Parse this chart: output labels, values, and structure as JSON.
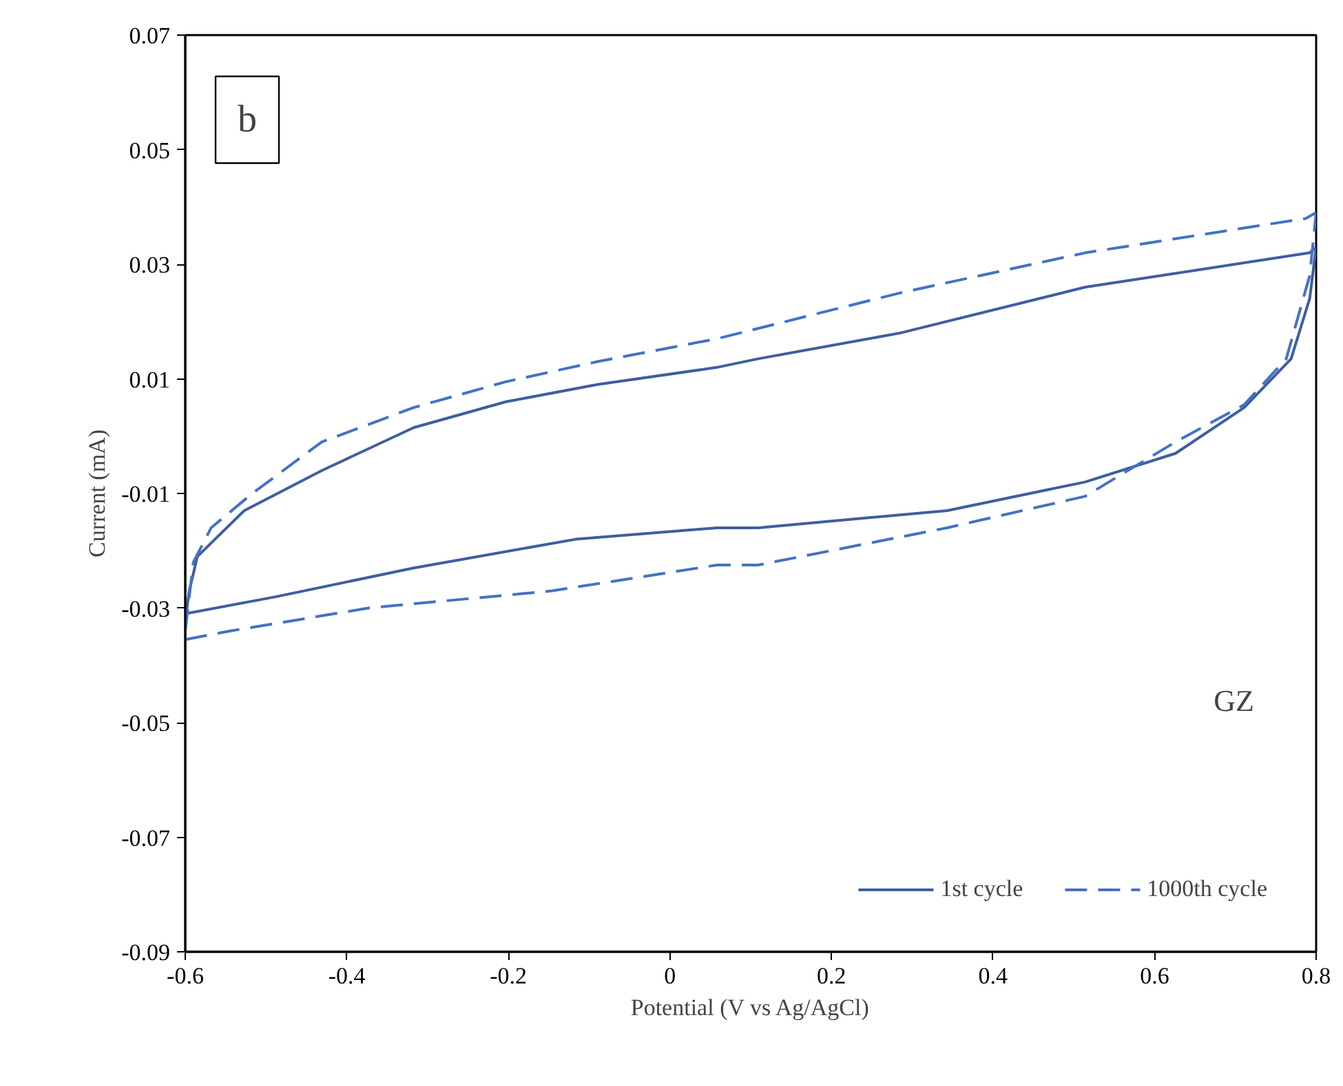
{
  "chart_data": {
    "type": "line",
    "xlabel": "Potential (V vs Ag/AgCl)",
    "ylabel": "Current (mA)",
    "xlim": [
      -0.6,
      0.8
    ],
    "xticks": [
      -0.6,
      -0.4,
      -0.2,
      0,
      0.2,
      0.4,
      0.6,
      0.8
    ],
    "ylim": [
      -0.09,
      0.07
    ],
    "yticks": [
      -0.09,
      -0.07,
      -0.05,
      -0.03,
      -0.01,
      0.01,
      0.03,
      0.05,
      0.07
    ],
    "grid": false,
    "legend": "bottom right",
    "marker": "none",
    "annotations": [
      "b",
      "GZ"
    ],
    "series": [
      {
        "name": "1st cycle",
        "color": "#3f5e9e",
        "line_style": "solid",
        "x": [
          -0.6,
          -0.595,
          -0.585,
          -0.527,
          -0.431,
          -0.317,
          -0.203,
          -0.09,
          0.058,
          0.109,
          0.285,
          0.514,
          0.792,
          0.8
        ],
        "values": [
          -0.032,
          -0.027,
          -0.021,
          -0.013,
          -0.006,
          0.0015,
          0.006,
          0.009,
          0.012,
          0.0135,
          0.018,
          0.026,
          0.032,
          0.033
        ]
      },
      {
        "color": "#3f5e9e",
        "line_style": "solid",
        "x": [
          -0.6,
          -0.487,
          -0.317,
          -0.117,
          0.058,
          0.109,
          0.343,
          0.514,
          0.626,
          0.711,
          0.769,
          0.792,
          0.8
        ],
        "values": [
          -0.031,
          -0.028,
          -0.023,
          -0.018,
          -0.016,
          -0.016,
          -0.013,
          -0.008,
          -0.003,
          0.005,
          0.0135,
          0.024,
          0.033
        ]
      },
      {
        "name": "1000th cycle",
        "color": "#4472c4",
        "line_style": "dashed",
        "x": [
          -0.6,
          -0.59,
          -0.568,
          -0.517,
          -0.431,
          -0.317,
          -0.203,
          -0.09,
          0.058,
          0.285,
          0.514,
          0.787,
          0.8
        ],
        "values": [
          -0.034,
          -0.022,
          -0.016,
          -0.01,
          -0.001,
          0.005,
          0.0095,
          0.013,
          0.017,
          0.025,
          0.032,
          0.038,
          0.039
        ]
      },
      {
        "color": "#4472c4",
        "line_style": "dashed",
        "x": [
          -0.6,
          -0.544,
          -0.373,
          -0.146,
          0.058,
          0.109,
          0.343,
          0.514,
          0.626,
          0.711,
          0.763,
          0.792,
          0.8
        ],
        "values": [
          -0.0355,
          -0.034,
          -0.03,
          -0.027,
          -0.0225,
          -0.0225,
          -0.016,
          -0.0105,
          -0.001,
          0.0055,
          0.0135,
          0.028,
          0.039
        ]
      }
    ]
  }
}
